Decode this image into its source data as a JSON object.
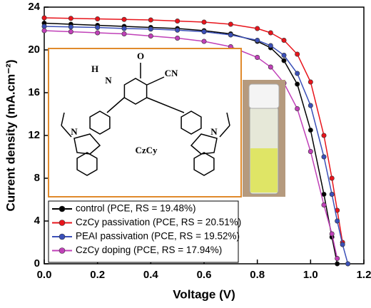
{
  "chart_data": {
    "type": "line",
    "xlabel": "Voltage (V)",
    "ylabel": "Current density (mA.cm⁻²)",
    "x": [
      0,
      0.1,
      0.2,
      0.3,
      0.4,
      0.5,
      0.6,
      0.7,
      0.8,
      0.85,
      0.9,
      0.95,
      1.0,
      1.05,
      1.08,
      1.1,
      1.12,
      1.14
    ],
    "series": [
      {
        "name": "control (PCE, RS = 19.48%)",
        "color": "#000000",
        "values": [
          22.5,
          22.4,
          22.3,
          22.2,
          22.1,
          22.0,
          21.8,
          21.5,
          20.8,
          20.2,
          19.0,
          16.8,
          12.5,
          6.5,
          2.5,
          0,
          null,
          null
        ]
      },
      {
        "name": "CzCy passivation (PCE, RS = 20.51%)",
        "color": "#e8141b",
        "values": [
          23.0,
          22.95,
          22.9,
          22.85,
          22.8,
          22.7,
          22.6,
          22.4,
          22.0,
          21.6,
          20.9,
          19.6,
          17.0,
          12.0,
          8.0,
          5.0,
          2.0,
          null
        ]
      },
      {
        "name": "PEAI passivation (PCE, RS = 19.52%)",
        "color": "#3b50b8",
        "values": [
          22.2,
          22.15,
          22.1,
          22.0,
          21.95,
          21.85,
          21.7,
          21.4,
          20.9,
          20.4,
          19.5,
          17.8,
          14.8,
          10.0,
          6.5,
          4.0,
          1.8,
          0
        ]
      },
      {
        "name": "CzCy doping (PCE, RS = 17.94%)",
        "color": "#c040b8",
        "values": [
          21.8,
          21.7,
          21.6,
          21.5,
          21.3,
          21.1,
          20.8,
          20.3,
          19.3,
          18.4,
          16.9,
          14.5,
          10.5,
          5.5,
          2.8,
          0.5,
          null,
          null
        ]
      }
    ],
    "xlim": [
      0,
      1.2
    ],
    "xticks": [
      {
        "value": 0,
        "label": "0.0"
      },
      0.2,
      0.4,
      0.6,
      0.8,
      {
        "value": 1,
        "label": "1.0"
      },
      0.2,
      1.2
    ],
    "ylim": [
      0,
      24
    ],
    "yticks": [
      0,
      4,
      8,
      12,
      16,
      20,
      24
    ],
    "legend": "lower-left",
    "annotations": [
      "O",
      "H",
      "N",
      "CN",
      "CzCy",
      "N",
      "N"
    ]
  }
}
